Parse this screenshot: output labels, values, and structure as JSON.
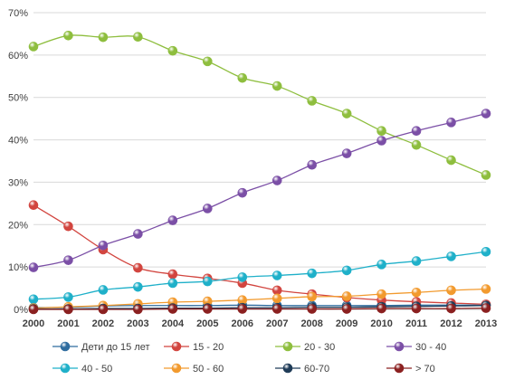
{
  "chart_data": {
    "type": "line",
    "x": [
      "2000",
      "2001",
      "2002",
      "2003",
      "2004",
      "2005",
      "2006",
      "2007",
      "2008",
      "2009",
      "2010",
      "2011",
      "2012",
      "2013"
    ],
    "ylim": [
      0,
      70
    ],
    "yticks": [
      "0%",
      "10%",
      "20%",
      "30%",
      "40%",
      "50%",
      "60%",
      "70%"
    ],
    "grid": true,
    "legend": "bottom",
    "series": [
      {
        "name": "Дети до 15 лет",
        "color": "#2E6C9F",
        "values": [
          0.4,
          0.5,
          0.8,
          0.9,
          0.9,
          0.9,
          1.0,
          0.9,
          0.9,
          0.9,
          0.9,
          1.0,
          1.0,
          1.0
        ]
      },
      {
        "name": "15 - 20",
        "color": "#D2453F",
        "values": [
          24.6,
          19.6,
          14.1,
          9.8,
          8.3,
          7.3,
          6.2,
          4.5,
          3.6,
          2.8,
          2.2,
          1.8,
          1.5,
          1.2
        ]
      },
      {
        "name": "20 - 30",
        "color": "#8EBE3E",
        "values": [
          62.0,
          64.6,
          64.2,
          64.3,
          61.0,
          58.5,
          54.6,
          52.7,
          49.2,
          46.2,
          42.1,
          38.8,
          35.2,
          31.7
        ]
      },
      {
        "name": "30 - 40",
        "color": "#7B4FA6",
        "values": [
          9.9,
          11.6,
          15.1,
          17.8,
          21.0,
          23.8,
          27.5,
          30.4,
          34.1,
          36.8,
          39.8,
          42.1,
          44.1,
          46.2
        ]
      },
      {
        "name": "40 - 50",
        "color": "#1FB0C9",
        "values": [
          2.4,
          2.9,
          4.6,
          5.3,
          6.2,
          6.6,
          7.6,
          8.0,
          8.5,
          9.2,
          10.6,
          11.4,
          12.5,
          13.6
        ]
      },
      {
        "name": "50 - 60",
        "color": "#F29A2E",
        "values": [
          0.3,
          0.6,
          0.9,
          1.3,
          1.7,
          1.9,
          2.2,
          2.6,
          3.0,
          3.1,
          3.6,
          4.0,
          4.5,
          4.8
        ]
      },
      {
        "name": "60-70",
        "color": "#1F3B57",
        "values": [
          0.1,
          0.1,
          0.2,
          0.2,
          0.3,
          0.3,
          0.4,
          0.4,
          0.5,
          0.5,
          0.6,
          0.7,
          0.8,
          0.9
        ]
      },
      {
        "name": "> 70",
        "color": "#8B2020",
        "values": [
          0.0,
          0.0,
          0.0,
          0.0,
          0.1,
          0.1,
          0.1,
          0.1,
          0.1,
          0.1,
          0.2,
          0.2,
          0.2,
          0.3
        ]
      }
    ]
  }
}
